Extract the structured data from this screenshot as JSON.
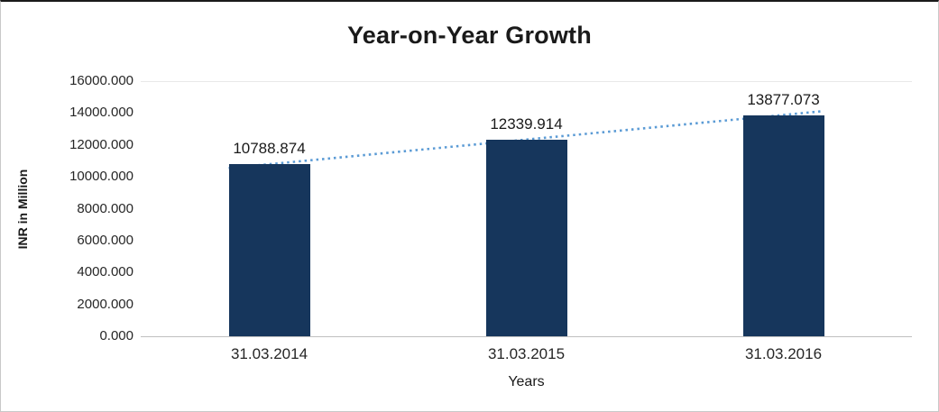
{
  "chart_data": {
    "type": "bar",
    "title": "Year-on-Year Growth",
    "xlabel": "Years",
    "ylabel": "INR in Million",
    "categories": [
      "31.03.2014",
      "31.03.2015",
      "31.03.2016"
    ],
    "values": [
      10788.874,
      12339.914,
      13877.073
    ],
    "value_labels": [
      "10788.874",
      "12339.914",
      "13877.073"
    ],
    "ylim": [
      0,
      16000
    ],
    "ytick_step": 2000,
    "ytick_labels": [
      "0.000",
      "2000.000",
      "4000.000",
      "6000.000",
      "8000.000",
      "10000.000",
      "12000.000",
      "14000.000",
      "16000.000"
    ],
    "legend_position": "none",
    "grid": "top-line-only",
    "trendline": {
      "type": "linear",
      "style": "dotted"
    },
    "colors": {
      "bar": "#16365C",
      "trendline": "#5B9BD5",
      "axis": "#BFBFBF",
      "gridline": "#E9E9E9",
      "text": "#1A1A1A"
    }
  }
}
